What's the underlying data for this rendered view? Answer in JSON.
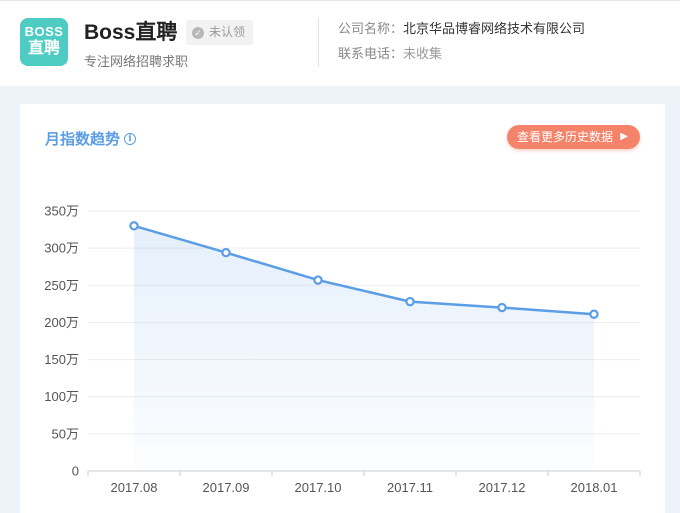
{
  "header": {
    "logo_line1": "BOSS",
    "logo_line2": "直聘",
    "app_name": "Boss直聘",
    "claim_status": "未认领",
    "tagline": "专注网络招聘求职",
    "company_label": "公司名称：",
    "company_value": "北京华品博睿网络技术有限公司",
    "phone_label": "联系电话：",
    "phone_value": "未收集"
  },
  "card": {
    "title": "月指数趋势",
    "more_button": "查看更多历史数据",
    "more_arrow": "▶"
  },
  "chart_data": {
    "type": "area",
    "categories": [
      "2017.08",
      "2017.09",
      "2017.10",
      "2017.11",
      "2017.12",
      "2018.01"
    ],
    "values": [
      330,
      294,
      257,
      228,
      220,
      211
    ],
    "unit": "万",
    "ylim": [
      0,
      350
    ],
    "yticks": [
      0,
      50,
      100,
      150,
      200,
      250,
      300,
      350
    ],
    "ytick_labels": [
      "0",
      "50万",
      "100万",
      "150万",
      "200万",
      "250万",
      "300万",
      "350万"
    ],
    "grid": true,
    "line_color": "#5b9ee6",
    "marker_fill": "#ffffff",
    "legend": "none"
  },
  "colors": {
    "accent": "#5b9ee6",
    "button": "#f4836a",
    "logo": "#4ecbc3"
  },
  "icons": {
    "claim": "check-circle-icon",
    "info": "info-icon",
    "arrow": "triangle-right-icon"
  }
}
